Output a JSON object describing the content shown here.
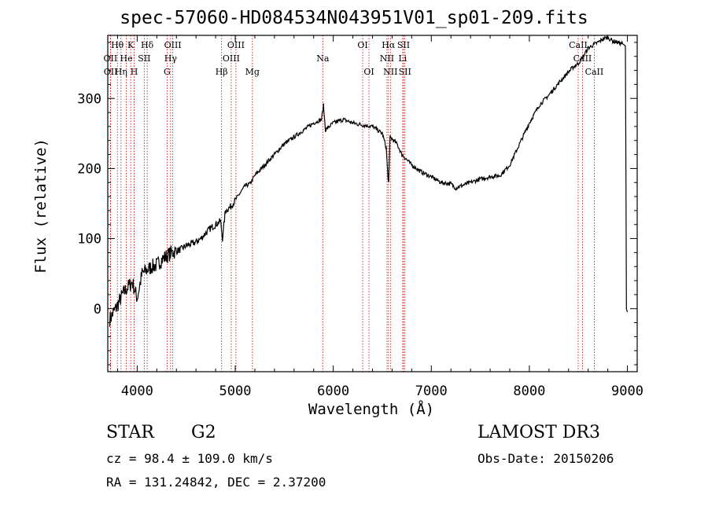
{
  "chart_data": {
    "type": "line",
    "title": "spec-57060-HD084534N043951V01_sp01-209.fits",
    "xlabel": "Wavelength (Å)",
    "ylabel": "Flux (relative)",
    "xlim": [
      3700,
      9100
    ],
    "ylim": [
      -90,
      390
    ],
    "xticks": [
      4000,
      5000,
      6000,
      7000,
      8000,
      9000
    ],
    "yticks": [
      0,
      100,
      200,
      300
    ],
    "grid": false,
    "series": [
      {
        "name": "spectrum",
        "x": [
          3720,
          3760,
          3800,
          3850,
          3900,
          3950,
          4000,
          4050,
          4100,
          4150,
          4200,
          4250,
          4300,
          4350,
          4400,
          4450,
          4500,
          4550,
          4600,
          4650,
          4700,
          4750,
          4800,
          4850,
          4870,
          4900,
          4950,
          5000,
          5050,
          5100,
          5150,
          5200,
          5300,
          5400,
          5500,
          5600,
          5700,
          5800,
          5880,
          5900,
          5920,
          6000,
          6100,
          6200,
          6300,
          6400,
          6500,
          6540,
          6563,
          6580,
          6650,
          6700,
          6800,
          6900,
          7000,
          7100,
          7200,
          7250,
          7300,
          7400,
          7500,
          7600,
          7700,
          7800,
          7900,
          8000,
          8100,
          8200,
          8300,
          8400,
          8450,
          8500,
          8550,
          8600,
          8650,
          8700,
          8750,
          8800,
          8850,
          8900,
          8950,
          8980,
          8990,
          9000
        ],
        "y": [
          -15,
          -5,
          5,
          20,
          30,
          38,
          15,
          50,
          55,
          60,
          62,
          70,
          75,
          80,
          82,
          85,
          90,
          92,
          95,
          100,
          108,
          115,
          120,
          125,
          100,
          140,
          145,
          155,
          165,
          175,
          178,
          190,
          205,
          220,
          235,
          245,
          255,
          265,
          270,
          290,
          255,
          265,
          270,
          265,
          262,
          260,
          250,
          230,
          175,
          245,
          235,
          220,
          205,
          195,
          188,
          180,
          178,
          172,
          175,
          180,
          185,
          188,
          190,
          205,
          235,
          265,
          290,
          305,
          322,
          338,
          345,
          350,
          360,
          372,
          376,
          380,
          385,
          387,
          382,
          380,
          378,
          375,
          0,
          -5
        ]
      }
    ],
    "lines": [
      {
        "label": "Hθ",
        "wave": 3798,
        "row": 0
      },
      {
        "label": "OII",
        "wave": 3727,
        "row": 1
      },
      {
        "label": "OII",
        "wave": 3729,
        "row": 2
      },
      {
        "label": "He",
        "wave": 3889,
        "row": 1
      },
      {
        "label": "Hη",
        "wave": 3835,
        "row": 2
      },
      {
        "label": "K",
        "wave": 3934,
        "row": 0
      },
      {
        "label": "H",
        "wave": 3969,
        "row": 2
      },
      {
        "label": "SII",
        "wave": 4072,
        "row": 1
      },
      {
        "label": "Hδ",
        "wave": 4102,
        "row": 0
      },
      {
        "label": "OIII",
        "wave": 4363,
        "row": 0
      },
      {
        "label": "Hγ",
        "wave": 4341,
        "row": 1
      },
      {
        "label": "G",
        "wave": 4305,
        "row": 2
      },
      {
        "label": "Hβ",
        "wave": 4861,
        "row": 2
      },
      {
        "label": "OIII",
        "wave": 5007,
        "row": 0
      },
      {
        "label": "OIII",
        "wave": 4959,
        "row": 1
      },
      {
        "label": "Mg",
        "wave": 5175,
        "row": 2
      },
      {
        "label": "Na",
        "wave": 5893,
        "row": 1
      },
      {
        "label": "OI",
        "wave": 6300,
        "row": 0
      },
      {
        "label": "OI",
        "wave": 6364,
        "row": 2
      },
      {
        "label": "Hα",
        "wave": 6563,
        "row": 0
      },
      {
        "label": "NII",
        "wave": 6548,
        "row": 1
      },
      {
        "label": "NII",
        "wave": 6583,
        "row": 2
      },
      {
        "label": "SII",
        "wave": 6717,
        "row": 0
      },
      {
        "label": "Li",
        "wave": 6708,
        "row": 1
      },
      {
        "label": "SII",
        "wave": 6731,
        "row": 2
      },
      {
        "label": "CaII",
        "wave": 8498,
        "row": 0
      },
      {
        "label": "CaII",
        "wave": 8542,
        "row": 1
      },
      {
        "label": "CaII",
        "wave": 8662,
        "row": 2
      }
    ]
  },
  "info": {
    "class": "STAR",
    "subclass": "G2",
    "cz": "cz = 98.4 ± 109.0 km/s",
    "radec": "RA = 131.24842, DEC =   2.37200",
    "survey": "LAMOST DR3",
    "obsdate": "Obs-Date: 20150206"
  },
  "colors": {
    "spectrum": "#000000",
    "line_marker": "#cc0000",
    "axis": "#000000"
  }
}
